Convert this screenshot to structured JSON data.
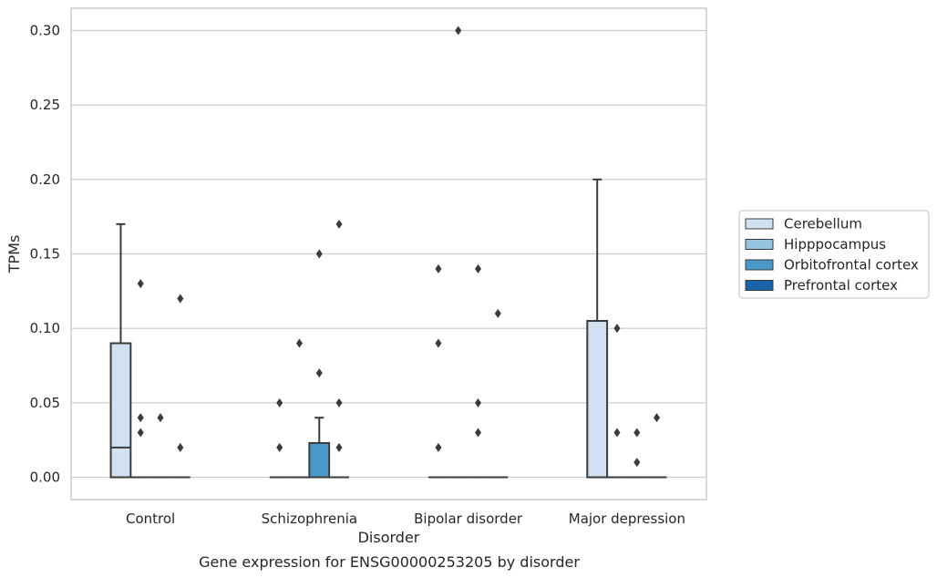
{
  "chart_data": {
    "type": "box",
    "title": "Gene expression for ENSG00000253205 by disorder",
    "xlabel": "Disorder",
    "ylabel": "TPMs",
    "categories": [
      "Control",
      "Schizophrenia",
      "Bipolar disorder",
      "Major depression"
    ],
    "yticks": [
      "0.00",
      "0.05",
      "0.10",
      "0.15",
      "0.20",
      "0.25",
      "0.30"
    ],
    "ylim": [
      -0.015,
      0.315
    ],
    "grid": true,
    "legend_position": "right",
    "series": [
      {
        "name": "Cerebellum",
        "color": "#d0e1f2",
        "boxes": [
          {
            "min": 0.0,
            "q1": 0.0,
            "median": 0.02,
            "q3": 0.09,
            "max": 0.17,
            "fliers": []
          },
          {
            "min": 0.0,
            "q1": 0.0,
            "median": 0.0,
            "q3": 0.0,
            "max": 0.0,
            "fliers": [
              0.05,
              0.02
            ]
          },
          {
            "min": 0.0,
            "q1": 0.0,
            "median": 0.0,
            "q3": 0.0,
            "max": 0.0,
            "fliers": [
              0.14,
              0.09,
              0.02
            ]
          },
          {
            "min": 0.0,
            "q1": 0.0,
            "median": 0.0,
            "q3": 0.105,
            "max": 0.2,
            "fliers": []
          }
        ]
      },
      {
        "name": "Hipppocampus",
        "color": "#94c4df",
        "boxes": [
          {
            "min": 0.0,
            "q1": 0.0,
            "median": 0.0,
            "q3": 0.0,
            "max": 0.0,
            "fliers": [
              0.13,
              0.04,
              0.03
            ]
          },
          {
            "min": 0.0,
            "q1": 0.0,
            "median": 0.0,
            "q3": 0.0,
            "max": 0.0,
            "fliers": [
              0.09
            ]
          },
          {
            "min": 0.0,
            "q1": 0.0,
            "median": 0.0,
            "q3": 0.0,
            "max": 0.0,
            "fliers": [
              0.3
            ]
          },
          {
            "min": 0.0,
            "q1": 0.0,
            "median": 0.0,
            "q3": 0.0,
            "max": 0.0,
            "fliers": [
              0.1,
              0.03
            ]
          }
        ]
      },
      {
        "name": "Orbitofrontal cortex",
        "color": "#4a98c9",
        "boxes": [
          {
            "min": 0.0,
            "q1": 0.0,
            "median": 0.0,
            "q3": 0.0,
            "max": 0.0,
            "fliers": [
              0.04
            ]
          },
          {
            "min": 0.0,
            "q1": 0.0,
            "median": 0.0,
            "q3": 0.023,
            "max": 0.04,
            "fliers": [
              0.15,
              0.07
            ]
          },
          {
            "min": 0.0,
            "q1": 0.0,
            "median": 0.0,
            "q3": 0.0,
            "max": 0.0,
            "fliers": [
              0.14,
              0.05,
              0.03
            ]
          },
          {
            "min": 0.0,
            "q1": 0.0,
            "median": 0.0,
            "q3": 0.0,
            "max": 0.0,
            "fliers": [
              0.03,
              0.01
            ]
          }
        ]
      },
      {
        "name": "Prefrontal cortex",
        "color": "#1764ab",
        "boxes": [
          {
            "min": 0.0,
            "q1": 0.0,
            "median": 0.0,
            "q3": 0.0,
            "max": 0.0,
            "fliers": [
              0.12,
              0.02
            ]
          },
          {
            "min": 0.0,
            "q1": 0.0,
            "median": 0.0,
            "q3": 0.0,
            "max": 0.0,
            "fliers": [
              0.17,
              0.05,
              0.02
            ]
          },
          {
            "min": 0.0,
            "q1": 0.0,
            "median": 0.0,
            "q3": 0.0,
            "max": 0.0,
            "fliers": [
              0.11
            ]
          },
          {
            "min": 0.0,
            "q1": 0.0,
            "median": 0.0,
            "q3": 0.0,
            "max": 0.0,
            "fliers": [
              0.04
            ]
          }
        ]
      }
    ]
  }
}
